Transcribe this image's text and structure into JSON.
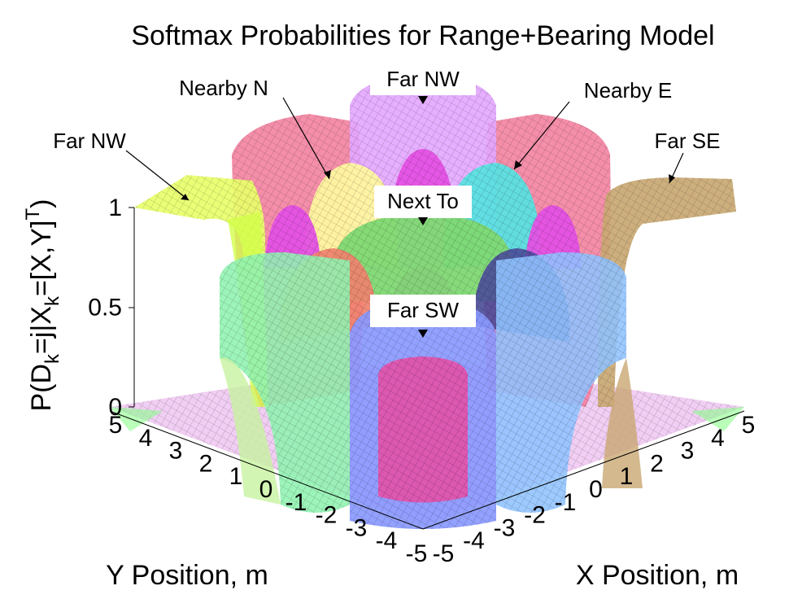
{
  "chart_data": {
    "type": "surface",
    "title": "Softmax Probabilities for Range+Bearing Model",
    "xlabel": "X Position, m",
    "ylabel": "Y Position, m",
    "zlabel_parts": {
      "pre": "P(D",
      "sub1": "k",
      "mid": "=j|X",
      "sub2": "k",
      "post": "=[X,Y]",
      "sup": "T",
      "end": ")"
    },
    "xlim": [
      -5,
      5
    ],
    "ylim": [
      -5,
      5
    ],
    "zlim": [
      0,
      1
    ],
    "x_ticks": [
      "-5",
      "-4",
      "-3",
      "-2",
      "-1",
      "0",
      "1",
      "2",
      "3",
      "4",
      "5"
    ],
    "y_ticks": [
      "-5",
      "-4",
      "-3",
      "-2",
      "-1",
      "0",
      "1",
      "2",
      "3",
      "4",
      "5"
    ],
    "z_ticks": [
      "0",
      "0.5",
      "1"
    ],
    "grid": false,
    "annotations": [
      {
        "label": "Far NW"
      },
      {
        "label": "Nearby N"
      },
      {
        "label": "Far NW"
      },
      {
        "label": "Nearby E"
      },
      {
        "label": "Far SE"
      },
      {
        "label": "Next To"
      },
      {
        "label": "Far SW"
      }
    ],
    "series_colors": {
      "far_nw_left": "#e8ff6a",
      "nearby_n": "#fff7a0",
      "far_nw_top": "#e3a6ff",
      "nearby_e": "#5ae2e2",
      "far_se": "#c9a873",
      "next_to": "#7fd873",
      "far_sw": "#8a99ff",
      "red_plateaus": "#f27a9a",
      "magenta_domes": "#e451e4",
      "green_left": "#8ff2b0",
      "blue_right": "#8fc3ff",
      "navy": "#4b4b9a",
      "coral": "#f0826e"
    }
  }
}
